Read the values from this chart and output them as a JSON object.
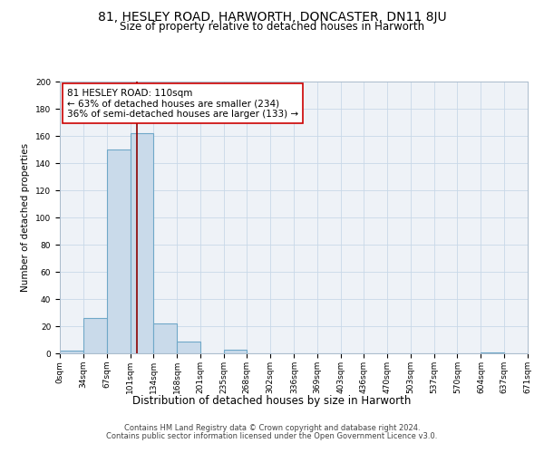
{
  "title1": "81, HESLEY ROAD, HARWORTH, DONCASTER, DN11 8JU",
  "title2": "Size of property relative to detached houses in Harworth",
  "xlabel": "Distribution of detached houses by size in Harworth",
  "ylabel": "Number of detached properties",
  "bin_edges": [
    0,
    34,
    67,
    101,
    134,
    168,
    201,
    235,
    268,
    302,
    336,
    369,
    403,
    436,
    470,
    503,
    537,
    570,
    604,
    637,
    671
  ],
  "bar_heights": [
    2,
    26,
    150,
    162,
    22,
    9,
    0,
    3,
    0,
    0,
    0,
    0,
    0,
    0,
    0,
    0,
    0,
    0,
    1,
    0
  ],
  "bar_facecolor": "#c9daea",
  "bar_edgecolor": "#6fa8c8",
  "bar_linewidth": 0.8,
  "grid_color": "#c8d8e8",
  "bg_color": "#eef2f7",
  "vline_x": 110,
  "vline_color": "#8b0000",
  "vline_linewidth": 1.2,
  "annotation_title": "81 HESLEY ROAD: 110sqm",
  "annotation_line1": "← 63% of detached houses are smaller (234)",
  "annotation_line2": "36% of semi-detached houses are larger (133) →",
  "annotation_box_facecolor": "#ffffff",
  "annotation_box_edgecolor": "#cc0000",
  "ylim": [
    0,
    200
  ],
  "yticks": [
    0,
    20,
    40,
    60,
    80,
    100,
    120,
    140,
    160,
    180,
    200
  ],
  "xtick_labels": [
    "0sqm",
    "34sqm",
    "67sqm",
    "101sqm",
    "134sqm",
    "168sqm",
    "201sqm",
    "235sqm",
    "268sqm",
    "302sqm",
    "336sqm",
    "369sqm",
    "403sqm",
    "436sqm",
    "470sqm",
    "503sqm",
    "537sqm",
    "570sqm",
    "604sqm",
    "637sqm",
    "671sqm"
  ],
  "footer1": "Contains HM Land Registry data © Crown copyright and database right 2024.",
  "footer2": "Contains public sector information licensed under the Open Government Licence v3.0.",
  "title1_fontsize": 10,
  "title2_fontsize": 8.5,
  "xlabel_fontsize": 8.5,
  "ylabel_fontsize": 7.5,
  "tick_fontsize": 6.5,
  "footer_fontsize": 6,
  "annotation_fontsize": 7.5
}
